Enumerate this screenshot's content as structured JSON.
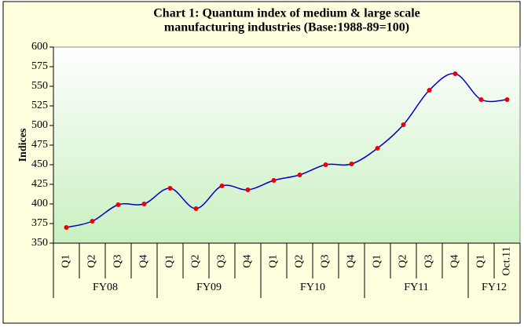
{
  "chart_data": {
    "type": "line",
    "title": [
      "Chart 1: Quantum index of medium & large scale",
      "manufacturing  industries (Base:1988-89=100)"
    ],
    "y_label": "Indices",
    "groups": [
      {
        "name": "FY08",
        "categories": [
          "Q1",
          "Q2",
          "Q3",
          "Q4"
        ]
      },
      {
        "name": "FY09",
        "categories": [
          "Q1",
          "Q2",
          "Q3",
          "Q4"
        ]
      },
      {
        "name": "FY10",
        "categories": [
          "Q1",
          "Q2",
          "Q3",
          "Q4"
        ]
      },
      {
        "name": "FY11",
        "categories": [
          "Q1",
          "Q2",
          "Q3",
          "Q4"
        ]
      },
      {
        "name": "FY12",
        "categories": [
          "Q1",
          "Oct.11"
        ]
      }
    ],
    "values": [
      370,
      378,
      399,
      400,
      420,
      394,
      423,
      418,
      430,
      437,
      450,
      451,
      471,
      501,
      545,
      566,
      533,
      533
    ],
    "color": "#0000cc",
    "marker_color": "#ee0000",
    "ylim": [
      350,
      600
    ],
    "yticks": [
      350,
      375,
      400,
      425,
      450,
      475,
      500,
      525,
      550,
      575,
      600
    ]
  }
}
